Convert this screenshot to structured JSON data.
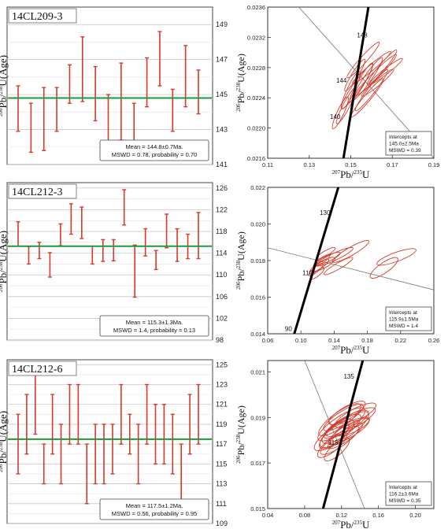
{
  "colors": {
    "bars": "#d63a2a",
    "mean_line": "#1e9a3a",
    "concordia": "#000000",
    "ellipse": "#d63a2a"
  },
  "panels": [
    {
      "sample": "14CL209-3",
      "age_plot": {
        "type": "bar",
        "ylabel_pb": "206",
        "ylabel_u": "238",
        "ylabel_age": "(Age)",
        "ylim": [
          141,
          150
        ],
        "yticks": [
          141,
          143,
          145,
          147,
          149
        ],
        "intervals": [
          [
            142.9,
            145.5
          ],
          [
            141.7,
            144.5
          ],
          [
            141.8,
            145.4
          ],
          [
            142.9,
            145.4
          ],
          [
            144.5,
            146.7
          ],
          [
            144.6,
            148.3
          ],
          [
            143.5,
            146.6
          ],
          [
            142.3,
            145.0
          ],
          [
            142.4,
            146.8
          ],
          [
            142.2,
            144.5
          ],
          [
            144.3,
            147.1
          ],
          [
            145.5,
            148.6
          ],
          [
            142.9,
            145.3
          ],
          [
            144.3,
            147.8
          ],
          [
            143.9,
            146.4
          ]
        ],
        "mean": 144.8,
        "legend_line1": "Mean = 144.8±0.7Ma.",
        "legend_line2": "MSWD = 0.78, probability = 0.70"
      },
      "concordia_plot": {
        "type": "scatter",
        "ylabel_pb": "206",
        "ylabel_u": "238",
        "ylabel_age": "U(Age)",
        "xlabel_pb": "207",
        "xlabel_u": "235",
        "xlim": [
          0.11,
          0.19
        ],
        "ylim": [
          0.0216,
          0.0236
        ],
        "xticks": [
          0.11,
          0.13,
          0.15,
          0.17,
          0.19
        ],
        "xtick_labels": [
          "0.11",
          "0.13",
          "0.15",
          "0.17",
          "0.19"
        ],
        "yticks": [
          0.0216,
          0.022,
          0.0224,
          0.0228,
          0.0232,
          0.0236
        ],
        "ytick_labels": [
          "0.0216",
          "0.0220",
          "0.0224",
          "0.0228",
          "0.0232",
          "0.0236"
        ],
        "concordia": [
          [
            0.1465,
            0.0216
          ],
          [
            0.1585,
            0.0236
          ]
        ],
        "discordia": [
          [
            0.125,
            0.0236
          ],
          [
            0.19,
            0.0216
          ]
        ],
        "age_labels": [
          {
            "text": "148",
            "x": 0.1555,
            "y": 0.0232
          },
          {
            "text": "144",
            "x": 0.1455,
            "y": 0.0226
          },
          {
            "text": "140",
            "x": 0.1425,
            "y": 0.02212
          }
        ],
        "ellipses": [
          [
            0.158,
            0.02265,
            0.025,
            0.00018,
            55
          ],
          [
            0.162,
            0.0227,
            0.028,
            0.00016,
            45
          ],
          [
            0.155,
            0.0226,
            0.022,
            0.00016,
            60
          ],
          [
            0.16,
            0.0228,
            0.024,
            0.00014,
            40
          ],
          [
            0.165,
            0.0228,
            0.022,
            0.00015,
            50
          ],
          [
            0.15,
            0.0225,
            0.02,
            0.00018,
            65
          ],
          [
            0.153,
            0.02255,
            0.026,
            0.0002,
            55
          ],
          [
            0.158,
            0.0224,
            0.024,
            0.00016,
            50
          ],
          [
            0.156,
            0.0229,
            0.023,
            0.00016,
            48
          ],
          [
            0.163,
            0.0226,
            0.02,
            0.00014,
            40
          ],
          [
            0.148,
            0.0223,
            0.02,
            0.00016,
            62
          ],
          [
            0.16,
            0.0225,
            0.025,
            0.00017,
            52
          ],
          [
            0.167,
            0.02275,
            0.02,
            0.00013,
            38
          ],
          [
            0.152,
            0.0227,
            0.018,
            0.00015,
            58
          ],
          [
            0.145,
            0.0222,
            0.017,
            0.00016,
            65
          ]
        ],
        "legend_lines": [
          "Intercepts at",
          "145.0±2.5Ma",
          "MSWD = 0.39"
        ]
      }
    },
    {
      "sample": "14CL212-3",
      "age_plot": {
        "type": "bar",
        "ylabel_pb": "206",
        "ylabel_u": "238",
        "ylabel_age": "U(Age)",
        "ylim": [
          98,
          127
        ],
        "yticks": [
          98,
          102,
          106,
          110,
          114,
          118,
          122,
          126
        ],
        "intervals": [
          [
            115.3,
            119.8
          ],
          [
            112.0,
            115.2
          ],
          [
            113.0,
            116.0
          ],
          [
            109.6,
            114.1
          ],
          [
            115.4,
            119.4
          ],
          [
            117.5,
            123.1
          ],
          [
            116.7,
            122.5
          ],
          [
            112.0,
            115.3
          ],
          [
            112.5,
            116.5
          ],
          [
            112.6,
            116.5
          ],
          [
            119.2,
            125.7
          ],
          [
            105.9,
            115.5
          ],
          [
            113.5,
            118.5
          ],
          [
            111.0,
            114.5
          ],
          [
            115.0,
            121.2
          ],
          [
            112.5,
            118.5
          ],
          [
            113.0,
            117.5
          ],
          [
            113.0,
            121.5
          ]
        ],
        "mean": 115.3,
        "legend_line1": "Mean = 115.3±1.3Ma.",
        "legend_line2": "MSWD = 1.4, probability = 0.13"
      },
      "concordia_plot": {
        "type": "scatter",
        "ylabel_pb": "206",
        "ylabel_u": "238",
        "ylabel_age": "U(Age)",
        "xlabel_pb": "207",
        "xlabel_u": "235",
        "xlim": [
          0.06,
          0.26
        ],
        "ylim": [
          0.014,
          0.022
        ],
        "xticks": [
          0.06,
          0.1,
          0.14,
          0.18,
          0.22,
          0.26
        ],
        "xtick_labels": [
          "0.06",
          "0.10",
          "0.14",
          "0.18",
          "0.22",
          "0.26"
        ],
        "yticks": [
          0.014,
          0.016,
          0.018,
          0.02,
          0.022
        ],
        "ytick_labels": [
          "0.014",
          "0.016",
          "0.018",
          "0.020",
          "0.022"
        ],
        "concordia": [
          [
            0.092,
            0.014
          ],
          [
            0.145,
            0.022
          ]
        ],
        "discordia": [
          [
            0.06,
            0.0187
          ],
          [
            0.26,
            0.0164
          ]
        ],
        "age_labels": [
          {
            "text": "130",
            "x": 0.129,
            "y": 0.0205
          },
          {
            "text": "110",
            "x": 0.108,
            "y": 0.0172
          },
          {
            "text": "90",
            "x": 0.085,
            "y": 0.01415
          }
        ],
        "ellipses": [
          [
            0.122,
            0.0177,
            0.028,
            0.0006,
            35
          ],
          [
            0.128,
            0.0178,
            0.03,
            0.0007,
            30
          ],
          [
            0.118,
            0.0175,
            0.022,
            0.0005,
            40
          ],
          [
            0.132,
            0.0181,
            0.034,
            0.0006,
            25
          ],
          [
            0.14,
            0.0182,
            0.05,
            0.0007,
            25
          ],
          [
            0.125,
            0.018,
            0.024,
            0.0005,
            35
          ],
          [
            0.16,
            0.0185,
            0.05,
            0.0008,
            30
          ],
          [
            0.2,
            0.0176,
            0.04,
            0.001,
            35
          ],
          [
            0.215,
            0.0182,
            0.05,
            0.0009,
            20
          ],
          [
            0.145,
            0.0177,
            0.04,
            0.0006,
            30
          ],
          [
            0.12,
            0.0173,
            0.02,
            0.0005,
            40
          ],
          [
            0.13,
            0.0184,
            0.026,
            0.0005,
            30
          ]
        ],
        "legend_lines": [
          "Intercepts at",
          "115.9±1.5Ma",
          "MSWD = 1.4"
        ]
      }
    },
    {
      "sample": "14CL212-6",
      "age_plot": {
        "type": "bar",
        "ylabel_pb": "206",
        "ylabel_u": "238",
        "ylabel_age": "U(Age)",
        "ylim": [
          109,
          125.5
        ],
        "yticks": [
          109,
          111,
          113,
          115,
          117,
          119,
          121,
          123,
          125
        ],
        "intervals": [
          [
            114.0,
            120.0
          ],
          [
            116.0,
            122.0
          ],
          [
            118.0,
            124.0
          ],
          [
            113.0,
            117.0
          ],
          [
            116.0,
            122.0
          ],
          [
            113.0,
            119.0
          ],
          [
            117.0,
            123.0
          ],
          [
            117.0,
            123.0
          ],
          [
            111.0,
            117.0
          ],
          [
            113.0,
            119.0
          ],
          [
            113.0,
            119.0
          ],
          [
            114.0,
            119.0
          ],
          [
            117.0,
            123.0
          ],
          [
            116.0,
            120.0
          ],
          [
            113.0,
            119.0
          ],
          [
            117.0,
            123.0
          ],
          [
            115.0,
            121.0
          ],
          [
            115.0,
            121.0
          ],
          [
            114.0,
            120.0
          ],
          [
            111.0,
            117.0
          ],
          [
            116.0,
            122.0
          ],
          [
            117.0,
            123.0
          ]
        ],
        "mean": 117.5,
        "legend_line1": "Mean = 117.5±1.2Ma.",
        "legend_line2": "MSWD = 0.56, probability = 0.95"
      },
      "concordia_plot": {
        "type": "scatter",
        "ylabel_pb": "206",
        "ylabel_u": "238",
        "ylabel_age": "U(Age)",
        "xlabel_pb": "207",
        "xlabel_u": "235",
        "xlim": [
          0.04,
          0.22
        ],
        "ylim": [
          0.015,
          0.0215
        ],
        "xticks": [
          0.04,
          0.08,
          0.12,
          0.16,
          0.2
        ],
        "xtick_labels": [
          "0.04",
          "0.08",
          "0.12",
          "0.16",
          "0.20"
        ],
        "yticks": [
          0.015,
          0.017,
          0.019,
          0.021
        ],
        "ytick_labels": [
          "0.015",
          "0.017",
          "0.019",
          "0.021"
        ],
        "concordia": [
          [
            0.1,
            0.015
          ],
          [
            0.143,
            0.0215
          ]
        ],
        "discordia": [
          [
            0.08,
            0.0215
          ],
          [
            0.145,
            0.015
          ]
        ],
        "age_labels": [
          {
            "text": "135",
            "x": 0.128,
            "y": 0.0207
          },
          {
            "text": "115",
            "x": 0.111,
            "y": 0.0178
          }
        ],
        "ellipses": [
          [
            0.12,
            0.0185,
            0.05,
            0.0012,
            35
          ],
          [
            0.125,
            0.0187,
            0.055,
            0.0011,
            30
          ],
          [
            0.115,
            0.0183,
            0.045,
            0.0012,
            38
          ],
          [
            0.13,
            0.0188,
            0.06,
            0.0011,
            28
          ],
          [
            0.118,
            0.018,
            0.05,
            0.001,
            35
          ],
          [
            0.122,
            0.019,
            0.05,
            0.001,
            32
          ],
          [
            0.112,
            0.0182,
            0.04,
            0.0011,
            40
          ],
          [
            0.128,
            0.0184,
            0.05,
            0.001,
            30
          ],
          [
            0.12,
            0.0187,
            0.06,
            0.0013,
            33
          ],
          [
            0.135,
            0.0191,
            0.05,
            0.001,
            28
          ],
          [
            0.11,
            0.0178,
            0.04,
            0.001,
            40
          ],
          [
            0.124,
            0.0182,
            0.045,
            0.0009,
            35
          ],
          [
            0.118,
            0.0189,
            0.055,
            0.0012,
            36
          ],
          [
            0.132,
            0.0186,
            0.04,
            0.0009,
            25
          ],
          [
            0.115,
            0.0176,
            0.035,
            0.0009,
            42
          ],
          [
            0.126,
            0.0192,
            0.045,
            0.001,
            30
          ],
          [
            0.12,
            0.0184,
            0.07,
            0.0014,
            34
          ]
        ],
        "legend_lines": [
          "Intercepts at",
          "116.2±3.6Ma",
          "MSWD = 0.35"
        ]
      }
    }
  ]
}
